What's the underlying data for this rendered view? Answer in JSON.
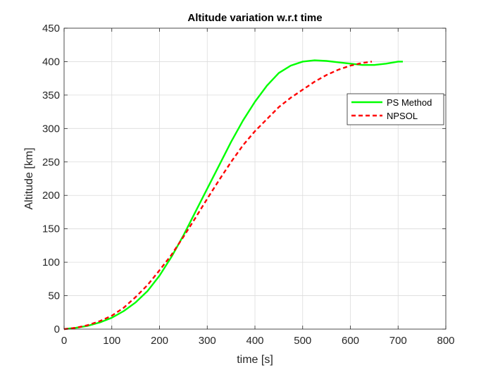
{
  "chart_data": {
    "type": "line",
    "title": "Altitude variation w.r.t time",
    "xlabel": "time [s]",
    "ylabel": "Altitude [km]",
    "xlim": [
      0,
      800
    ],
    "ylim": [
      0,
      450
    ],
    "xticks": [
      0,
      100,
      200,
      300,
      400,
      500,
      600,
      700,
      800
    ],
    "yticks": [
      0,
      50,
      100,
      150,
      200,
      250,
      300,
      350,
      400,
      450
    ],
    "grid": true,
    "legend_position": "top-right",
    "series": [
      {
        "name": "PS Method",
        "color": "#00ff00",
        "line_style": "solid",
        "x": [
          0,
          25,
          50,
          75,
          100,
          125,
          150,
          175,
          200,
          225,
          250,
          275,
          300,
          325,
          350,
          375,
          400,
          425,
          450,
          475,
          500,
          525,
          550,
          575,
          600,
          625,
          650,
          675,
          700,
          710
        ],
        "y": [
          0,
          2,
          5,
          10,
          17,
          27,
          40,
          57,
          80,
          108,
          140,
          175,
          210,
          245,
          280,
          312,
          340,
          364,
          383,
          394,
          400,
          402,
          401,
          399,
          397,
          395,
          395,
          397,
          400,
          400
        ]
      },
      {
        "name": "NPSOL",
        "color": "#ff0000",
        "line_style": "dashed",
        "x": [
          0,
          25,
          50,
          75,
          100,
          125,
          150,
          175,
          200,
          225,
          250,
          275,
          300,
          325,
          350,
          375,
          400,
          425,
          450,
          475,
          500,
          525,
          550,
          575,
          600,
          625,
          645
        ],
        "y": [
          0,
          2,
          6,
          12,
          20,
          32,
          48,
          66,
          88,
          111,
          138,
          166,
          195,
          223,
          250,
          275,
          296,
          314,
          332,
          346,
          358,
          370,
          380,
          388,
          394,
          398,
          400
        ]
      }
    ]
  }
}
